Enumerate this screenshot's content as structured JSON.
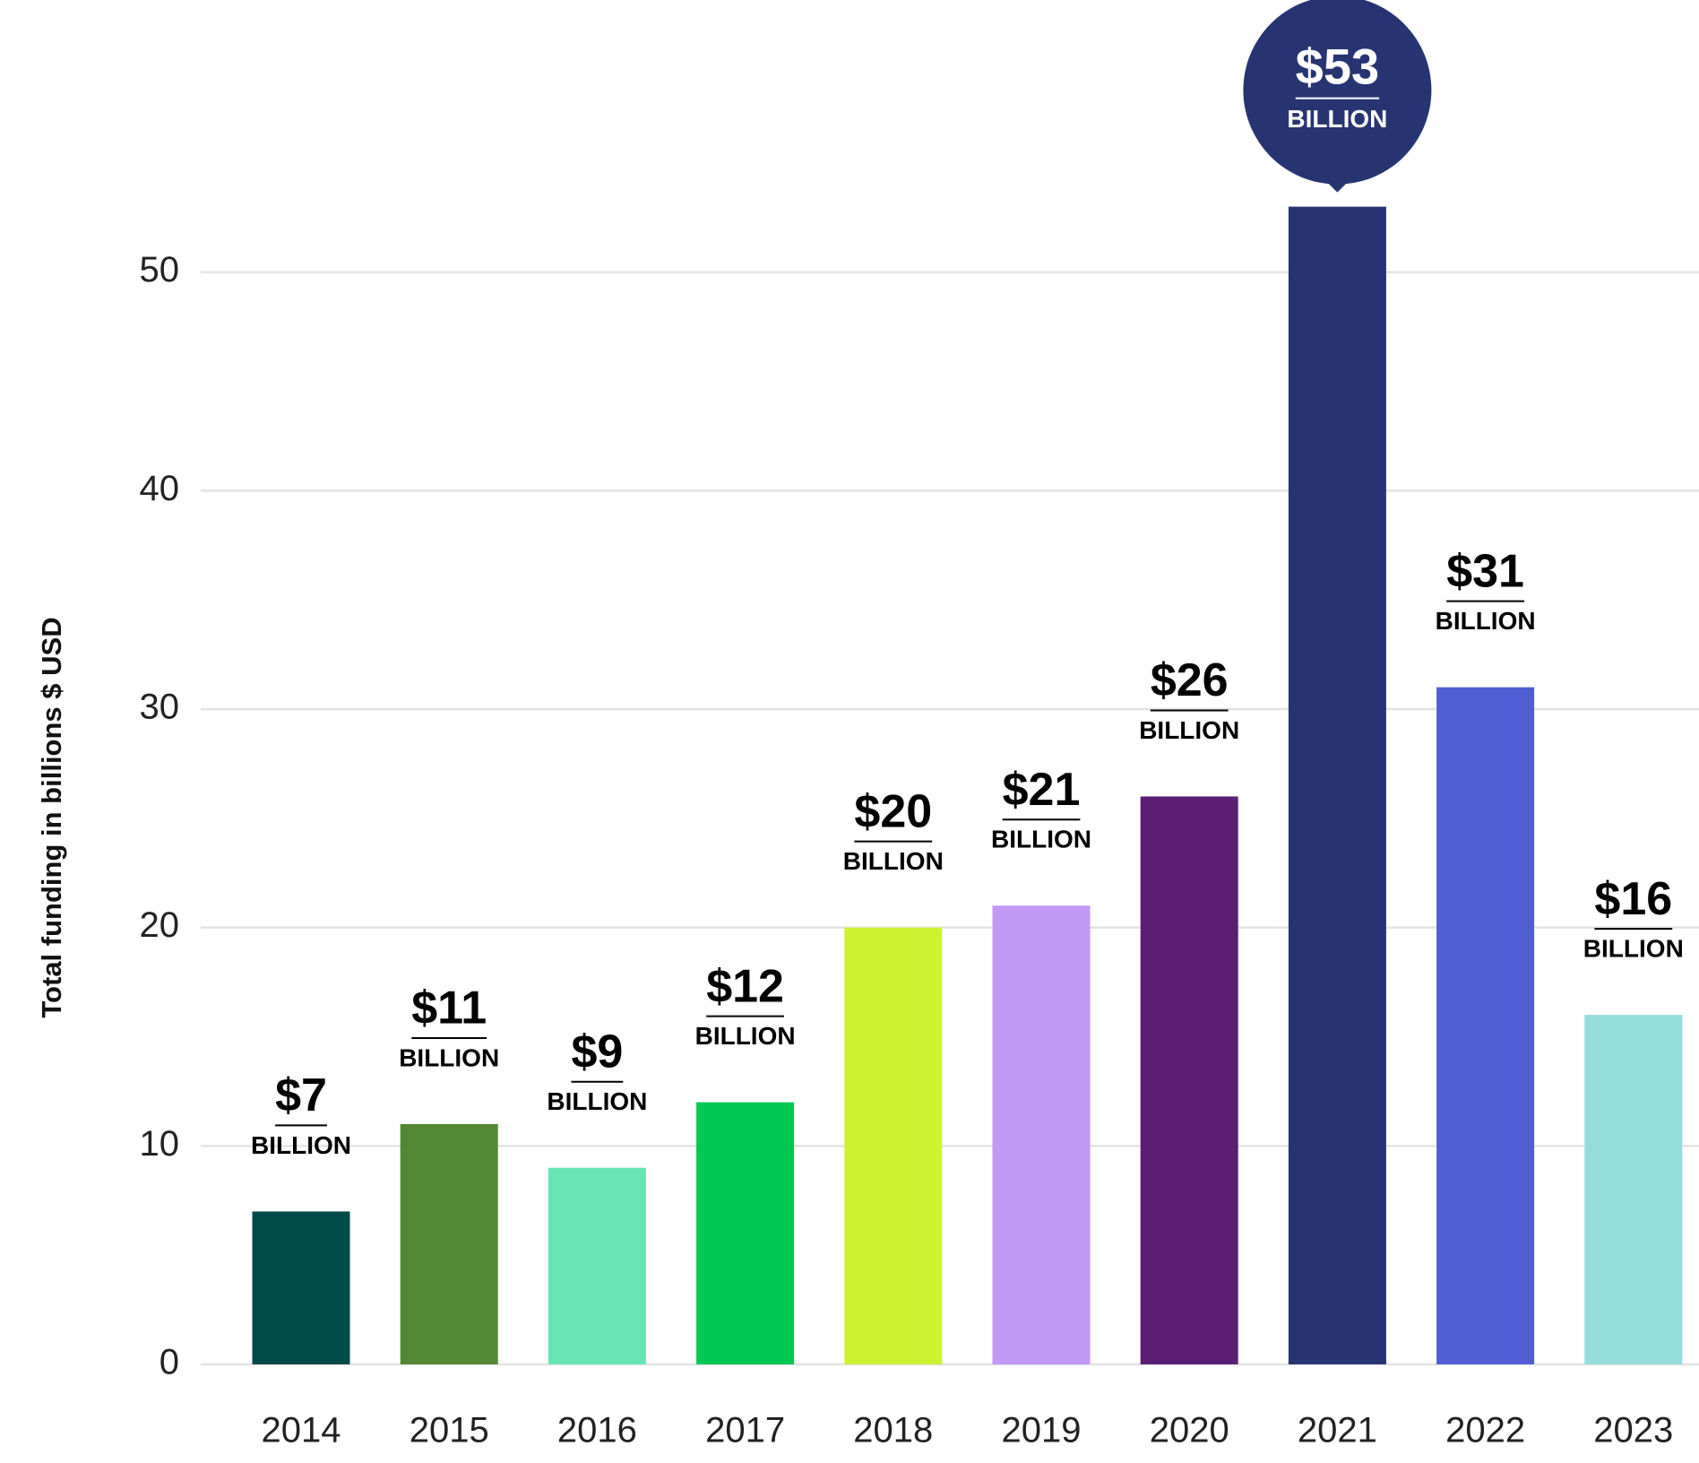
{
  "chart_data": {
    "type": "bar",
    "y_axis_label": "Total funding in billions $ USD",
    "categories": [
      "2014",
      "2015",
      "2016",
      "2017",
      "2018",
      "2019",
      "2020",
      "2021",
      "2022",
      "2023"
    ],
    "values": [
      7,
      11,
      9,
      12,
      20,
      21,
      26,
      53,
      31,
      16
    ],
    "value_labels": [
      "$7",
      "$11",
      "$9",
      "$12",
      "$20",
      "$21",
      "$26",
      "$53",
      "$31",
      "$16"
    ],
    "value_label_unit": "BILLION",
    "colors": [
      "#024b4b",
      "#528733",
      "#66e5b3",
      "#00c853",
      "#ccf232",
      "#c398f6",
      "#5b1e74",
      "#263572",
      "#505dd3",
      "#96dcdc"
    ],
    "callout": 7,
    "callout_color": "#263572",
    "ylim": [
      0,
      60
    ],
    "yticks": [
      0,
      10,
      20,
      30,
      40,
      50
    ],
    "grid": true
  }
}
